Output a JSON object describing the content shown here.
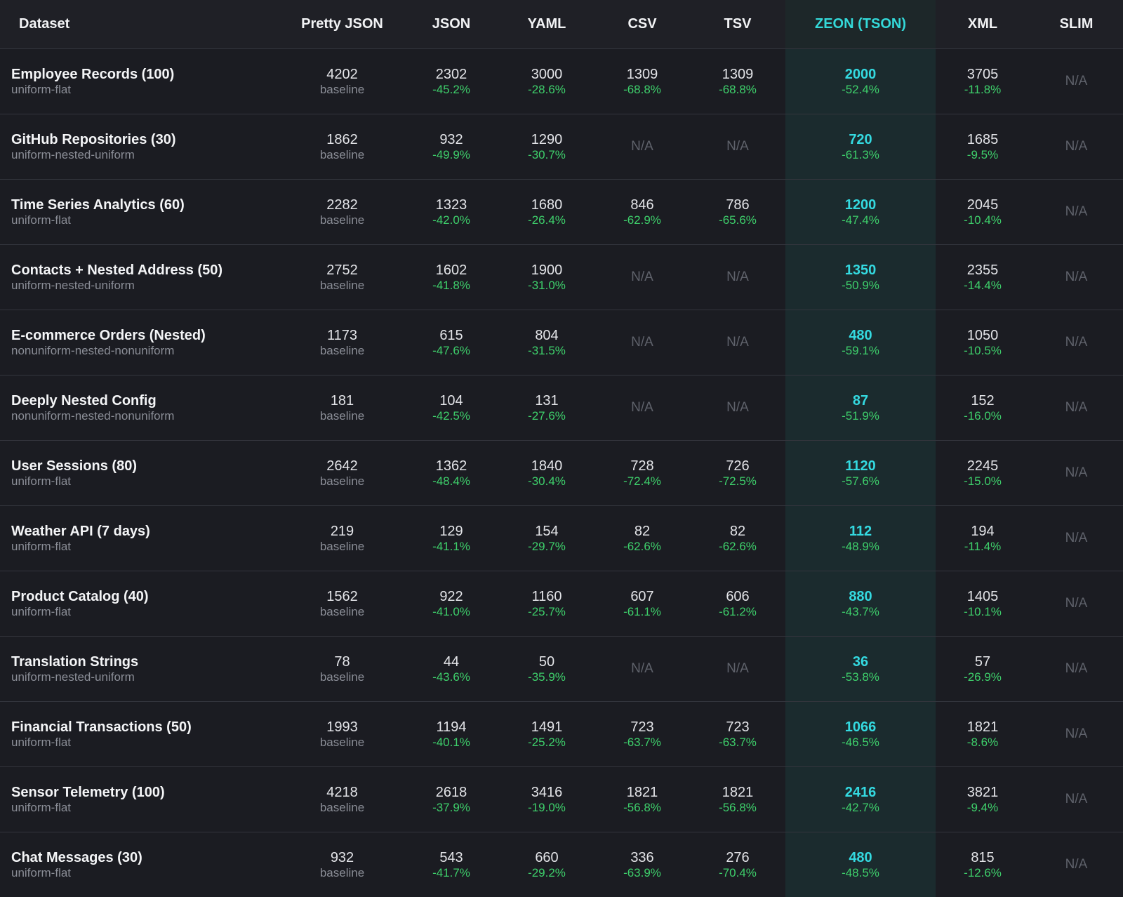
{
  "colors": {
    "background": "#1b1c22",
    "accent": "#34d9e0",
    "positive": "#3ecf6b",
    "highlight_column": "#1b2b2e"
  },
  "header": [
    "Dataset",
    "Pretty JSON",
    "JSON",
    "YAML",
    "CSV",
    "TSV",
    "ZEON (TSON)",
    "XML",
    "SLIM"
  ],
  "rows": [
    {
      "name": "Employee Records (100)",
      "type": "uniform-flat",
      "cells": [
        {
          "value": "4202",
          "note": "baseline"
        },
        {
          "value": "2302",
          "note": "-45.2%"
        },
        {
          "value": "3000",
          "note": "-28.6%"
        },
        {
          "value": "1309",
          "note": "-68.8%"
        },
        {
          "value": "1309",
          "note": "-68.8%"
        },
        {
          "value": "2000",
          "note": "-52.4%"
        },
        {
          "value": "3705",
          "note": "-11.8%"
        },
        {
          "value": "N/A",
          "note": ""
        }
      ]
    },
    {
      "name": "GitHub Repositories (30)",
      "type": "uniform-nested-uniform",
      "cells": [
        {
          "value": "1862",
          "note": "baseline"
        },
        {
          "value": "932",
          "note": "-49.9%"
        },
        {
          "value": "1290",
          "note": "-30.7%"
        },
        {
          "value": "N/A",
          "note": ""
        },
        {
          "value": "N/A",
          "note": ""
        },
        {
          "value": "720",
          "note": "-61.3%"
        },
        {
          "value": "1685",
          "note": "-9.5%"
        },
        {
          "value": "N/A",
          "note": ""
        }
      ]
    },
    {
      "name": "Time Series Analytics (60)",
      "type": "uniform-flat",
      "cells": [
        {
          "value": "2282",
          "note": "baseline"
        },
        {
          "value": "1323",
          "note": "-42.0%"
        },
        {
          "value": "1680",
          "note": "-26.4%"
        },
        {
          "value": "846",
          "note": "-62.9%"
        },
        {
          "value": "786",
          "note": "-65.6%"
        },
        {
          "value": "1200",
          "note": "-47.4%"
        },
        {
          "value": "2045",
          "note": "-10.4%"
        },
        {
          "value": "N/A",
          "note": ""
        }
      ]
    },
    {
      "name": "Contacts + Nested Address (50)",
      "type": "uniform-nested-uniform",
      "cells": [
        {
          "value": "2752",
          "note": "baseline"
        },
        {
          "value": "1602",
          "note": "-41.8%"
        },
        {
          "value": "1900",
          "note": "-31.0%"
        },
        {
          "value": "N/A",
          "note": ""
        },
        {
          "value": "N/A",
          "note": ""
        },
        {
          "value": "1350",
          "note": "-50.9%"
        },
        {
          "value": "2355",
          "note": "-14.4%"
        },
        {
          "value": "N/A",
          "note": ""
        }
      ]
    },
    {
      "name": "E-commerce Orders (Nested)",
      "type": "nonuniform-nested-nonuniform",
      "cells": [
        {
          "value": "1173",
          "note": "baseline"
        },
        {
          "value": "615",
          "note": "-47.6%"
        },
        {
          "value": "804",
          "note": "-31.5%"
        },
        {
          "value": "N/A",
          "note": ""
        },
        {
          "value": "N/A",
          "note": ""
        },
        {
          "value": "480",
          "note": "-59.1%"
        },
        {
          "value": "1050",
          "note": "-10.5%"
        },
        {
          "value": "N/A",
          "note": ""
        }
      ]
    },
    {
      "name": "Deeply Nested Config",
      "type": "nonuniform-nested-nonuniform",
      "cells": [
        {
          "value": "181",
          "note": "baseline"
        },
        {
          "value": "104",
          "note": "-42.5%"
        },
        {
          "value": "131",
          "note": "-27.6%"
        },
        {
          "value": "N/A",
          "note": ""
        },
        {
          "value": "N/A",
          "note": ""
        },
        {
          "value": "87",
          "note": "-51.9%"
        },
        {
          "value": "152",
          "note": "-16.0%"
        },
        {
          "value": "N/A",
          "note": ""
        }
      ]
    },
    {
      "name": "User Sessions (80)",
      "type": "uniform-flat",
      "cells": [
        {
          "value": "2642",
          "note": "baseline"
        },
        {
          "value": "1362",
          "note": "-48.4%"
        },
        {
          "value": "1840",
          "note": "-30.4%"
        },
        {
          "value": "728",
          "note": "-72.4%"
        },
        {
          "value": "726",
          "note": "-72.5%"
        },
        {
          "value": "1120",
          "note": "-57.6%"
        },
        {
          "value": "2245",
          "note": "-15.0%"
        },
        {
          "value": "N/A",
          "note": ""
        }
      ]
    },
    {
      "name": "Weather API (7 days)",
      "type": "uniform-flat",
      "cells": [
        {
          "value": "219",
          "note": "baseline"
        },
        {
          "value": "129",
          "note": "-41.1%"
        },
        {
          "value": "154",
          "note": "-29.7%"
        },
        {
          "value": "82",
          "note": "-62.6%"
        },
        {
          "value": "82",
          "note": "-62.6%"
        },
        {
          "value": "112",
          "note": "-48.9%"
        },
        {
          "value": "194",
          "note": "-11.4%"
        },
        {
          "value": "N/A",
          "note": ""
        }
      ]
    },
    {
      "name": "Product Catalog (40)",
      "type": "uniform-flat",
      "cells": [
        {
          "value": "1562",
          "note": "baseline"
        },
        {
          "value": "922",
          "note": "-41.0%"
        },
        {
          "value": "1160",
          "note": "-25.7%"
        },
        {
          "value": "607",
          "note": "-61.1%"
        },
        {
          "value": "606",
          "note": "-61.2%"
        },
        {
          "value": "880",
          "note": "-43.7%"
        },
        {
          "value": "1405",
          "note": "-10.1%"
        },
        {
          "value": "N/A",
          "note": ""
        }
      ]
    },
    {
      "name": "Translation Strings",
      "type": "uniform-nested-uniform",
      "cells": [
        {
          "value": "78",
          "note": "baseline"
        },
        {
          "value": "44",
          "note": "-43.6%"
        },
        {
          "value": "50",
          "note": "-35.9%"
        },
        {
          "value": "N/A",
          "note": ""
        },
        {
          "value": "N/A",
          "note": ""
        },
        {
          "value": "36",
          "note": "-53.8%"
        },
        {
          "value": "57",
          "note": "-26.9%"
        },
        {
          "value": "N/A",
          "note": ""
        }
      ]
    },
    {
      "name": "Financial Transactions (50)",
      "type": "uniform-flat",
      "cells": [
        {
          "value": "1993",
          "note": "baseline"
        },
        {
          "value": "1194",
          "note": "-40.1%"
        },
        {
          "value": "1491",
          "note": "-25.2%"
        },
        {
          "value": "723",
          "note": "-63.7%"
        },
        {
          "value": "723",
          "note": "-63.7%"
        },
        {
          "value": "1066",
          "note": "-46.5%"
        },
        {
          "value": "1821",
          "note": "-8.6%"
        },
        {
          "value": "N/A",
          "note": ""
        }
      ]
    },
    {
      "name": "Sensor Telemetry (100)",
      "type": "uniform-flat",
      "cells": [
        {
          "value": "4218",
          "note": "baseline"
        },
        {
          "value": "2618",
          "note": "-37.9%"
        },
        {
          "value": "3416",
          "note": "-19.0%"
        },
        {
          "value": "1821",
          "note": "-56.8%"
        },
        {
          "value": "1821",
          "note": "-56.8%"
        },
        {
          "value": "2416",
          "note": "-42.7%"
        },
        {
          "value": "3821",
          "note": "-9.4%"
        },
        {
          "value": "N/A",
          "note": ""
        }
      ]
    },
    {
      "name": "Chat Messages (30)",
      "type": "uniform-flat",
      "cells": [
        {
          "value": "932",
          "note": "baseline"
        },
        {
          "value": "543",
          "note": "-41.7%"
        },
        {
          "value": "660",
          "note": "-29.2%"
        },
        {
          "value": "336",
          "note": "-63.9%"
        },
        {
          "value": "276",
          "note": "-70.4%"
        },
        {
          "value": "480",
          "note": "-48.5%"
        },
        {
          "value": "815",
          "note": "-12.6%"
        },
        {
          "value": "N/A",
          "note": ""
        }
      ]
    }
  ]
}
